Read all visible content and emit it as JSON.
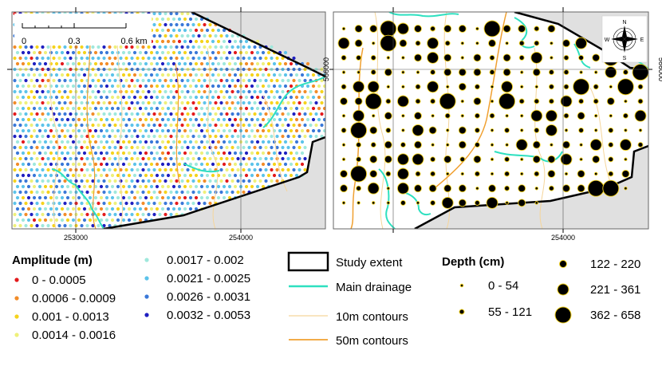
{
  "left_map": {
    "scalebar": {
      "labels": [
        "0",
        "0.3",
        "0.6 km"
      ]
    },
    "x_ticks": [
      "253000",
      "254000"
    ]
  },
  "right_map": {
    "x_ticks": [
      "254000"
    ],
    "y_ticks": [
      "566000",
      "566000"
    ],
    "compass": {
      "n": "N",
      "s": "S",
      "e": "E",
      "w": "W"
    }
  },
  "amplitude_legend": {
    "title": "Amplitude (m)",
    "items": [
      {
        "label": "0 - 0.0005",
        "color": "#e31a1c"
      },
      {
        "label": "0.0006 - 0.0009",
        "color": "#f28c28"
      },
      {
        "label": "0.001 - 0.0013",
        "color": "#f5d31c"
      },
      {
        "label": "0.0014 - 0.0016",
        "color": "#eef07a"
      },
      {
        "label": "0.0017 - 0.002",
        "color": "#9fe8dc"
      },
      {
        "label": "0.0021 - 0.0025",
        "color": "#5cc3ea"
      },
      {
        "label": "0.0026 - 0.0031",
        "color": "#3a78d8"
      },
      {
        "label": "0.0032 - 0.0053",
        "color": "#1f1fc0"
      }
    ]
  },
  "line_legend": {
    "items": [
      {
        "label": "Study extent",
        "kind": "box",
        "color": "#000000"
      },
      {
        "label": "Main drainage",
        "kind": "line",
        "color": "#2ee0c0"
      },
      {
        "label": "10m contours",
        "kind": "line",
        "color": "#f5d59a"
      },
      {
        "label": "50m contours",
        "kind": "line",
        "color": "#f0a030"
      }
    ]
  },
  "depth_legend": {
    "title": "Depth (cm)",
    "items": [
      {
        "label": "0 - 54",
        "size": 1
      },
      {
        "label": "55 - 121",
        "size": 2
      },
      {
        "label": "122 - 220",
        "size": 3
      },
      {
        "label": "221 - 361",
        "size": 4
      },
      {
        "label": "362 - 658",
        "size": 5
      }
    ]
  }
}
